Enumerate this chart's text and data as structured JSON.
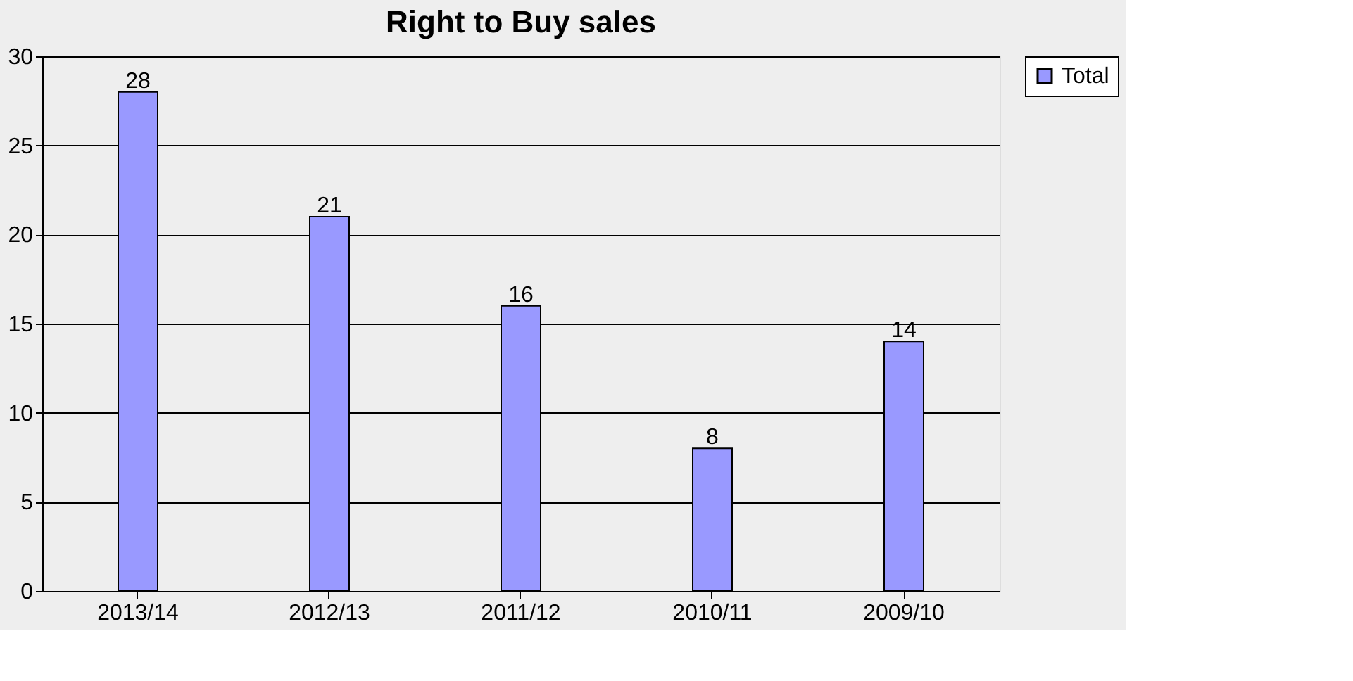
{
  "chart_data": {
    "type": "bar",
    "title": "Right to Buy sales",
    "categories": [
      "2013/14",
      "2012/13",
      "2011/12",
      "2010/11",
      "2009/10"
    ],
    "series": [
      {
        "name": "Total",
        "color": "#9999ff",
        "values": [
          28,
          21,
          16,
          8,
          14
        ]
      }
    ],
    "ylim": [
      0,
      30
    ],
    "yticks": [
      0,
      5,
      10,
      15,
      20,
      25,
      30
    ],
    "grid": "y",
    "legend": "right",
    "data_labels": true
  }
}
